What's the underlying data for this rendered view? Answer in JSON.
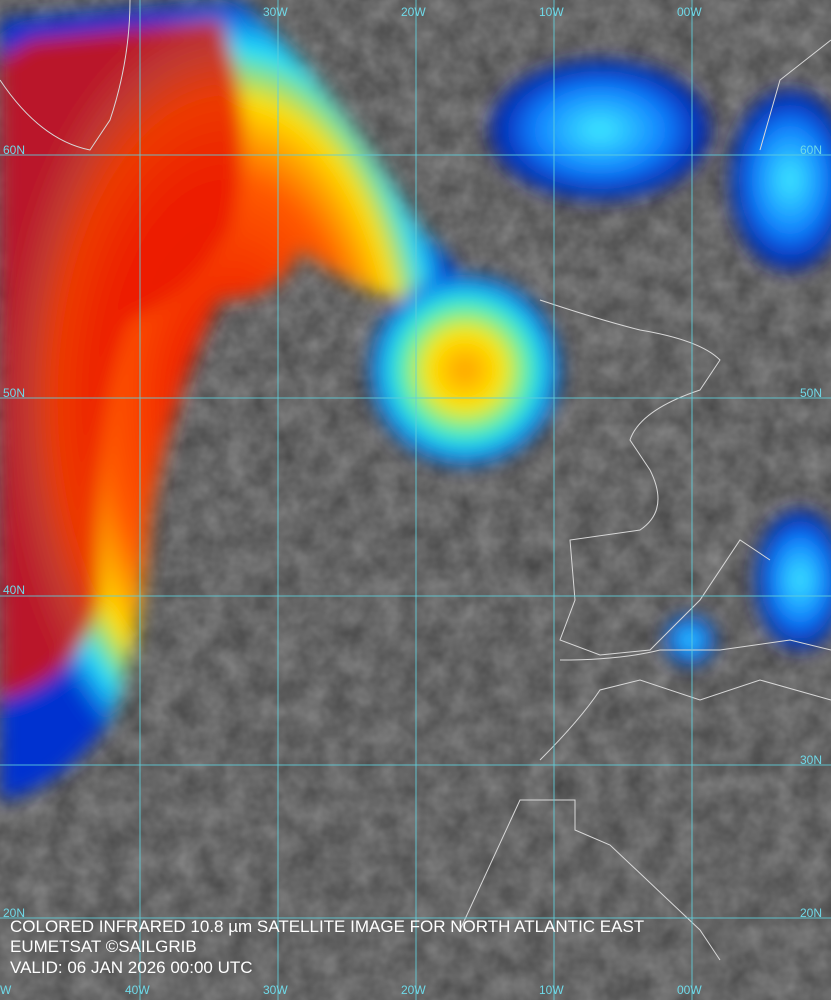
{
  "grid_labels": {
    "top": [
      "30W",
      "20W",
      "10W",
      "00W"
    ],
    "bottom": [
      "W",
      "40W",
      "30W",
      "20W",
      "10W",
      "00W"
    ],
    "left": [
      "60N",
      "50N",
      "40N",
      "20N"
    ],
    "right": [
      "60N",
      "50N",
      "30N",
      "20N"
    ]
  },
  "caption": [
    "COLORED INFRARED 10.8 µm SATELLITE IMAGE FOR NORTH ATLANTIC EAST",
    "EUMETSAT ©SAILGRIB",
    "VALID:  06 JAN 2026 00:00 UTC"
  ]
}
